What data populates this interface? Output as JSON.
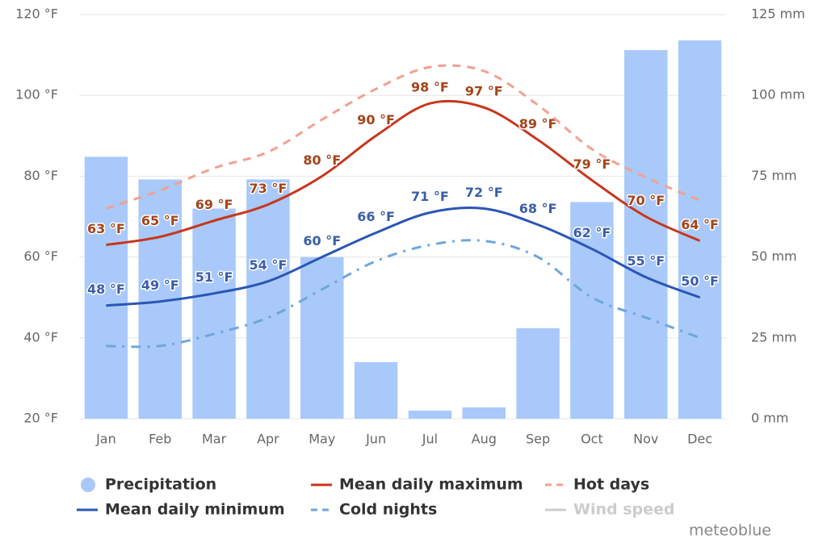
{
  "chart_data": {
    "type": "bar-line",
    "categories": [
      "Jan",
      "Feb",
      "Mar",
      "Apr",
      "May",
      "Jun",
      "Jul",
      "Aug",
      "Sep",
      "Oct",
      "Nov",
      "Dec"
    ],
    "ylim": [
      20,
      120
    ],
    "yticks": [
      {
        "value": 20,
        "label": "20 °F"
      },
      {
        "value": 40,
        "label": "40 °F"
      },
      {
        "value": 60,
        "label": "60 °F"
      },
      {
        "value": 80,
        "label": "80 °F"
      },
      {
        "value": 100,
        "label": "100 °F"
      },
      {
        "value": 120,
        "label": "120 °F"
      }
    ],
    "y2lim": [
      0,
      125
    ],
    "y2ticks": [
      {
        "value": 0,
        "label": "0 mm"
      },
      {
        "value": 25,
        "label": "25 mm"
      },
      {
        "value": 50,
        "label": "50 mm"
      },
      {
        "value": 75,
        "label": "75 mm"
      },
      {
        "value": 100,
        "label": "100 mm"
      },
      {
        "value": 125,
        "label": "125 mm"
      }
    ],
    "grid": true,
    "series": [
      {
        "name": "Precipitation",
        "type": "bar",
        "axis": "y2",
        "color": "#a9c9fa",
        "values": [
          81,
          74,
          65,
          74,
          50,
          17.5,
          2.5,
          3.5,
          28,
          67,
          114,
          117
        ]
      },
      {
        "name": "Mean daily maximum",
        "type": "line",
        "color": "#c8361c",
        "label_color": "#a3441b",
        "values": [
          63,
          65,
          69,
          73,
          80,
          90,
          98,
          97,
          89,
          79,
          70,
          64
        ],
        "value_labels": [
          "63 °F",
          "65 °F",
          "69 °F",
          "73 °F",
          "80 °F",
          "90 °F",
          "98 °F",
          "97 °F",
          "89 °F",
          "79 °F",
          "70 °F",
          "64 °F"
        ]
      },
      {
        "name": "Hot days",
        "type": "line",
        "dash": "dash",
        "color": "#f3a090",
        "values": [
          72,
          76.5,
          82,
          86,
          94,
          101.6,
          107,
          106,
          97.6,
          86.7,
          79.7,
          74
        ]
      },
      {
        "name": "Mean daily minimum",
        "type": "line",
        "color": "#2a56b5",
        "label_color": "#3b5ea6",
        "values": [
          48,
          49,
          51,
          54,
          60,
          66,
          71,
          72,
          68,
          62,
          55,
          50
        ],
        "value_labels": [
          "48 °F",
          "49 °F",
          "51 °F",
          "54 °F",
          "60 °F",
          "66 °F",
          "71 °F",
          "72 °F",
          "68 °F",
          "62 °F",
          "55 °F",
          "50 °F"
        ]
      },
      {
        "name": "Cold nights",
        "type": "line",
        "dash": "dashdot",
        "color": "#6ea6da",
        "values": [
          38,
          38,
          41,
          45,
          52,
          59,
          63,
          64,
          60,
          50,
          45,
          40
        ]
      },
      {
        "name": "Wind speed",
        "type": "line",
        "color": "#cccccc",
        "values": [
          null,
          null,
          null,
          null,
          null,
          null,
          null,
          null,
          null,
          null,
          null,
          null
        ]
      }
    ],
    "source": "meteoblue"
  }
}
